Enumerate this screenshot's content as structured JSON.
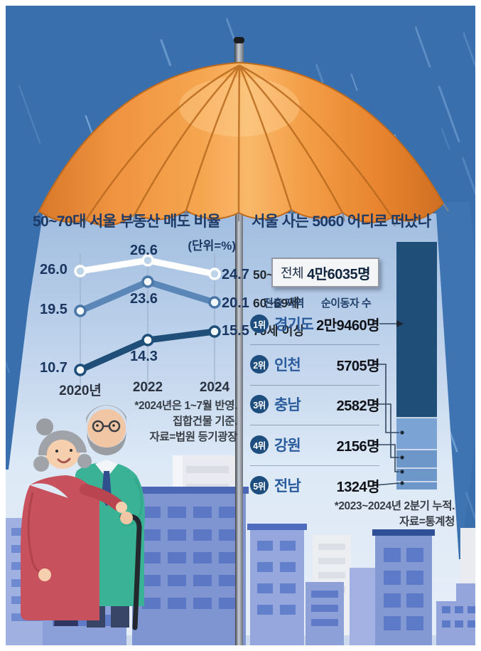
{
  "chart_data": [
    {
      "type": "line",
      "title": "50~70대 서울 부동산 매도 비율",
      "unit_label": "(단위=%)",
      "x": [
        "2020년",
        "2022",
        "2024"
      ],
      "series": [
        {
          "name": "50~59세",
          "values": [
            26.0,
            26.6,
            24.7
          ],
          "color": "#ffffff"
        },
        {
          "name": "60~69세",
          "values": [
            19.5,
            23.6,
            20.1
          ],
          "color": "#5b87b8"
        },
        {
          "name": "70세 이상",
          "values": [
            10.7,
            14.3,
            15.5
          ],
          "color": "#1f4e79"
        }
      ],
      "grid": "vertical-only",
      "legend_position": "inline-right",
      "source": "자료=법원 등기광장"
    },
    {
      "type": "bar",
      "title": "서울 사는 5060 어디로 떠났나",
      "total": 46035,
      "categories": [
        "경기도",
        "인천",
        "충남",
        "강원",
        "전남"
      ],
      "values": [
        29460,
        5705,
        2582,
        2156,
        1324
      ],
      "orientation": "stacked-vertical",
      "source": "자료=통계청"
    }
  ],
  "left_chart": {
    "title": "50~70대 서울 부동산 매도 비율",
    "unit": "(단위=%)",
    "x_labels": [
      "2020년",
      "2022",
      "2024"
    ],
    "s1": {
      "v1": "26.0",
      "v2": "26.6",
      "v3": "24.7",
      "name": "50~59세"
    },
    "s2": {
      "v1": "19.5",
      "v2": "23.6",
      "v3": "20.1",
      "name": "60~69세"
    },
    "s3": {
      "v1": "10.7",
      "v2": "14.3",
      "v3": "15.5",
      "name": "70세 이상"
    },
    "fn1": "*2024년은 1~7월 반영.",
    "fn2": "집합건물 기준.",
    "fn3": "자료=법원 등기광장"
  },
  "right_panel": {
    "title": "서울 사는 5060 어디로 떠났나",
    "total_label": "전체",
    "total_value": "4만6035명",
    "col_region": "전출 지역",
    "col_count": "순이동자 수",
    "rows": [
      {
        "rank": "1위",
        "region": "경기도",
        "count": "2만9460명"
      },
      {
        "rank": "2위",
        "region": "인천",
        "count": "5705명"
      },
      {
        "rank": "3위",
        "region": "충남",
        "count": "2582명"
      },
      {
        "rank": "4위",
        "region": "강원",
        "count": "2156명"
      },
      {
        "rank": "5위",
        "region": "전남",
        "count": "1324명"
      }
    ],
    "fn1": "*2023~2024년 2분기 누적.",
    "fn2": "자료=통계청"
  },
  "colors": {
    "sky": "#3a6fae",
    "rain_light": "#8ab5e0",
    "umbrella_orange": "#f19240",
    "navy": "#1f4e79",
    "steel_blue": "#5b87b8",
    "bar_light": "#7ba3d3",
    "building_blue": "#8b9fd8"
  }
}
